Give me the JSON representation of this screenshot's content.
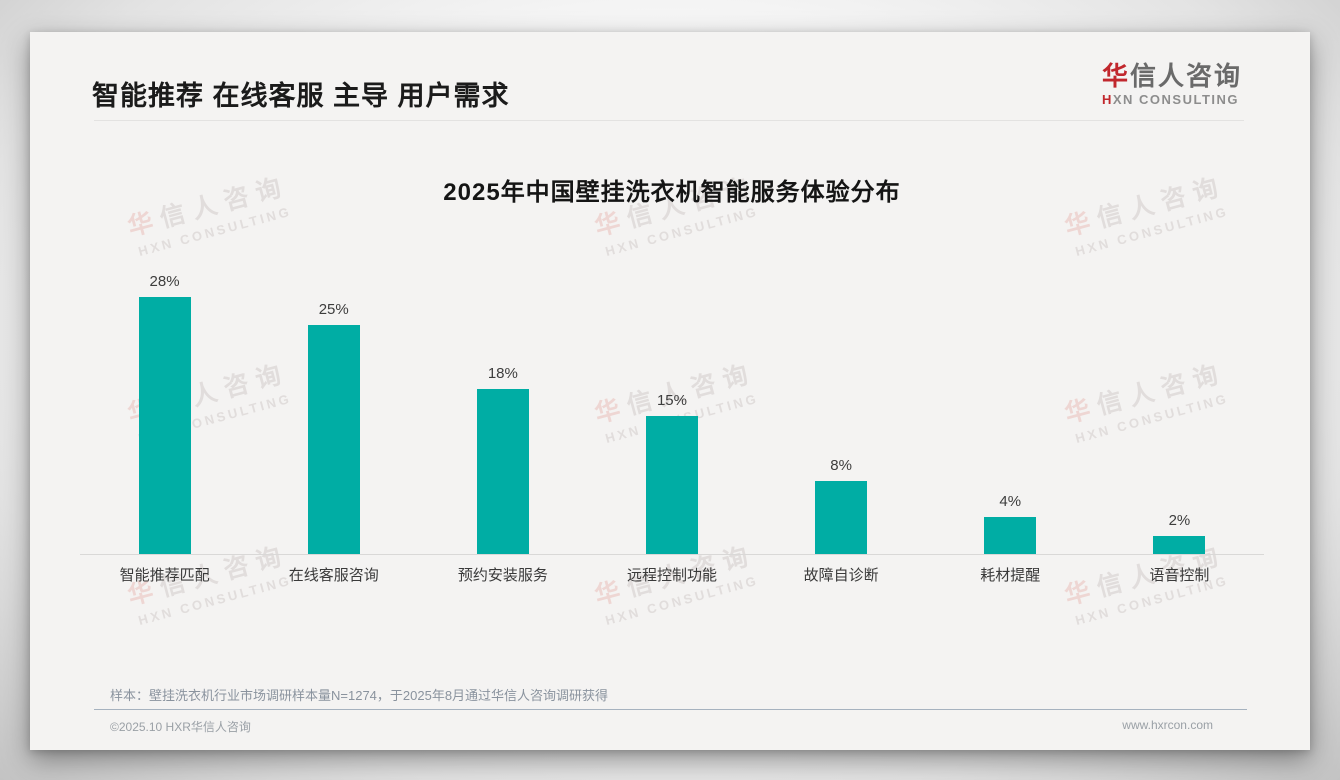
{
  "slide": {
    "title": "智能推荐 在线客服 主导 用户需求",
    "logo": {
      "name_highlight": "华",
      "name_rest": "信人咨询",
      "tagline_highlight": "H",
      "tagline_rest": "XN CONSULTING"
    },
    "watermark": {
      "line1_highlight": "华",
      "line1_rest": "信人咨询",
      "line2": "HXN CONSULTING"
    },
    "sample_note": "样本：壁挂洗衣机行业市场调研样本量N=1274，于2025年8月通过华信人咨询调研获得",
    "footer": {
      "copyright": "©2025.10 HXR华信人咨询",
      "website": "www.hxrcon.com"
    },
    "colors": {
      "bar": "#00ada4",
      "accent_red": "#c1272d"
    }
  },
  "chart_data": {
    "type": "bar",
    "title": "2025年中国壁挂洗衣机智能服务体验分布",
    "categories": [
      "智能推荐匹配",
      "在线客服咨询",
      "预约安装服务",
      "远程控制功能",
      "故障自诊断",
      "耗材提醒",
      "语音控制"
    ],
    "values": [
      28,
      25,
      18,
      15,
      8,
      4,
      2
    ],
    "value_labels": [
      "28%",
      "25%",
      "18%",
      "15%",
      "8%",
      "4%",
      "2%"
    ],
    "unit": "percent",
    "ylim": [
      0,
      30
    ],
    "grid": false,
    "legend": "none",
    "bar_color": "#00ada4",
    "xlabel": "",
    "ylabel": ""
  }
}
